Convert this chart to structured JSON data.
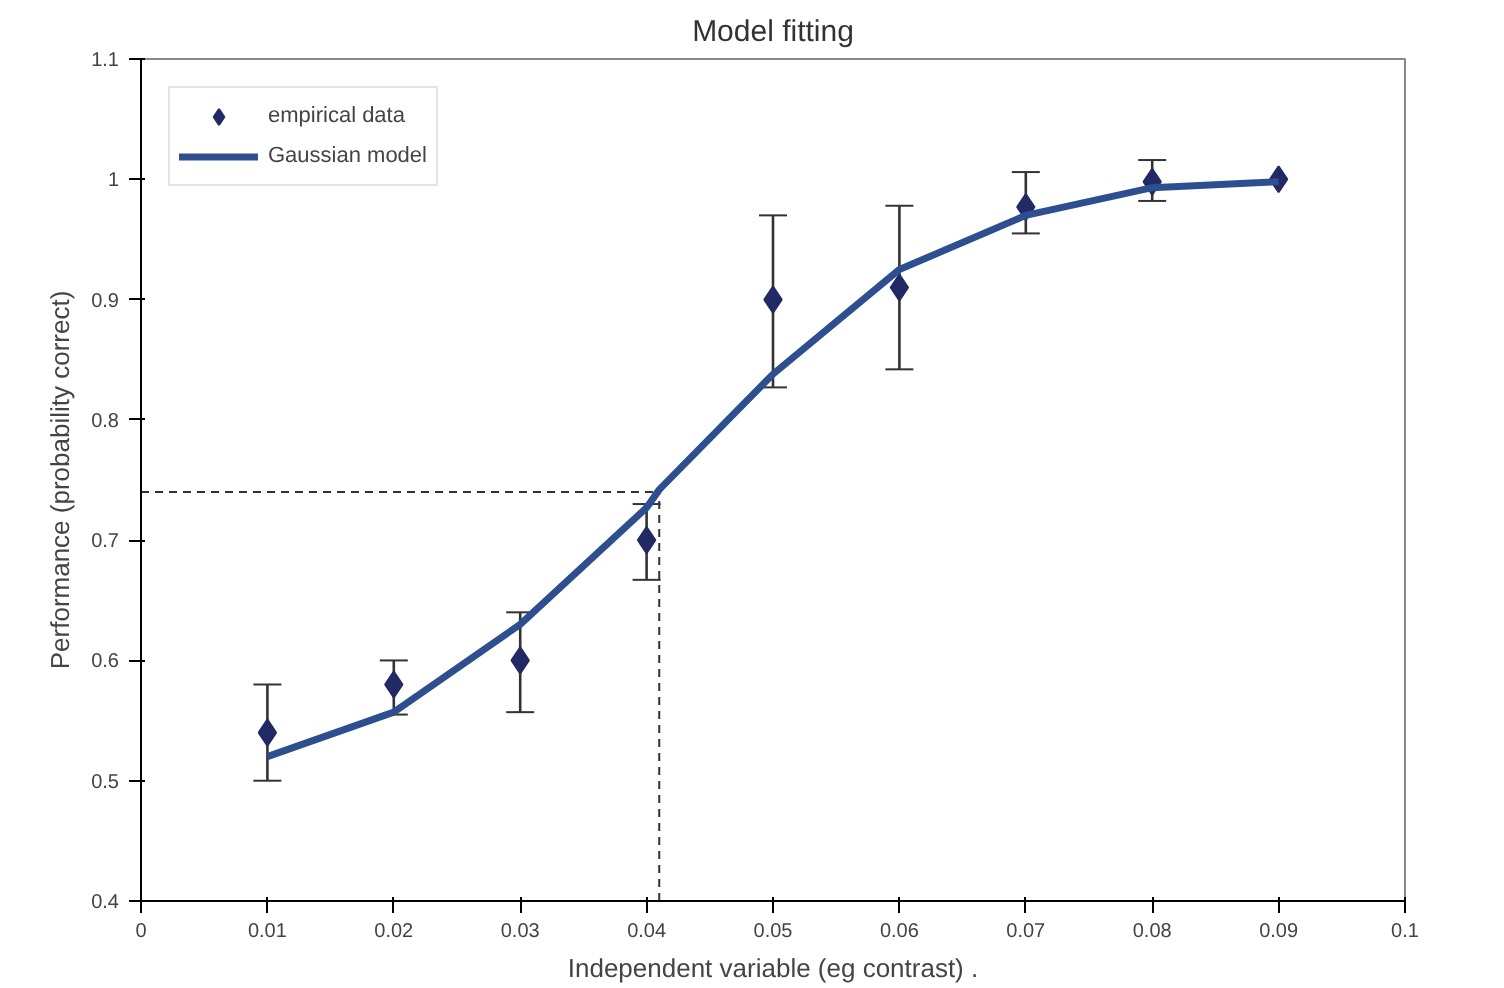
{
  "chart_data": {
    "type": "scatter",
    "title": "Model fitting",
    "xlabel": "Independent variable (eg contrast) .",
    "ylabel": "Performance (probability correct)",
    "xlim": [
      0,
      0.1
    ],
    "ylim": [
      0.4,
      1.1
    ],
    "xticks": [
      0,
      0.01,
      0.02,
      0.03,
      0.04,
      0.05,
      0.06,
      0.07,
      0.08,
      0.09,
      0.1
    ],
    "yticks": [
      0.4,
      0.5,
      0.6,
      0.7,
      0.8,
      0.9,
      1,
      1.1
    ],
    "grid": false,
    "legend": "top left",
    "series": [
      {
        "name": "empirical data",
        "marker": "diamond",
        "color": "#222a66",
        "x": [
          0.01,
          0.02,
          0.03,
          0.04,
          0.05,
          0.06,
          0.07,
          0.08,
          0.09
        ],
        "values": [
          0.54,
          0.58,
          0.6,
          0.7,
          0.9,
          0.91,
          0.977,
          0.998,
          1.0
        ],
        "errors": [
          [
            0.5,
            0.58
          ],
          [
            0.555,
            0.6
          ],
          [
            0.557,
            0.64
          ],
          [
            0.667,
            0.73
          ],
          [
            0.827,
            0.97
          ],
          [
            0.842,
            0.978
          ],
          [
            0.955,
            1.006
          ],
          [
            0.982,
            1.016
          ],
          null
        ]
      },
      {
        "name": "Gaussian model",
        "type": "line",
        "marker": "none",
        "line_style": "solid",
        "color": "#2e4f8f",
        "x": [
          0.01,
          0.02,
          0.03,
          0.04,
          0.041,
          0.05,
          0.06,
          0.07,
          0.08,
          0.09
        ],
        "values": [
          0.52,
          0.557,
          0.63,
          0.727,
          0.742,
          0.838,
          0.925,
          0.97,
          0.993,
          0.998
        ]
      }
    ],
    "ref_lines": [
      {
        "axis": "y",
        "value": 0.74,
        "line_style": "dashed",
        "color": "#333333"
      },
      {
        "axis": "x",
        "value": 0.041,
        "line_style": "dashed",
        "color": "#333333"
      }
    ]
  }
}
